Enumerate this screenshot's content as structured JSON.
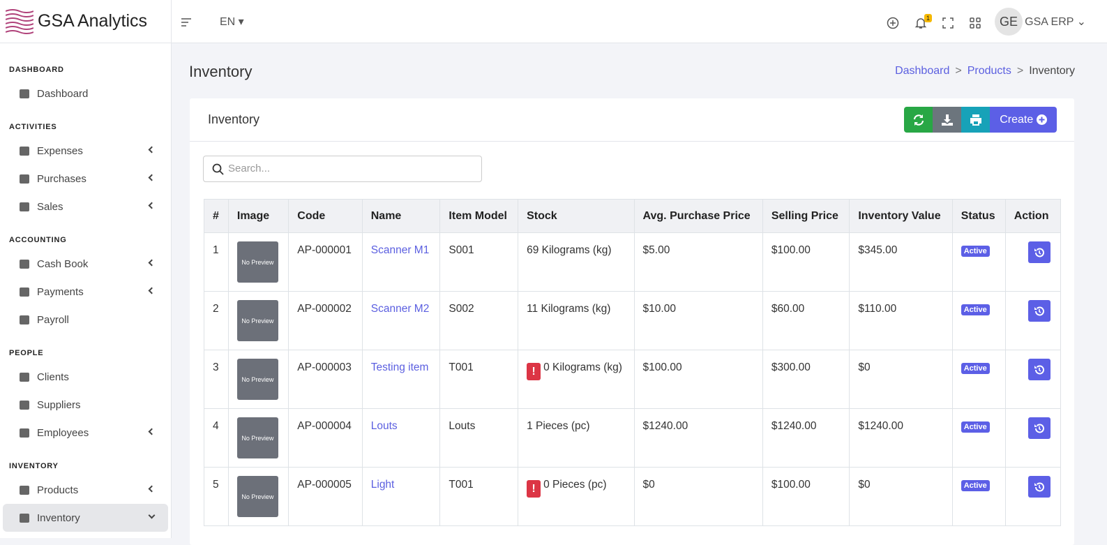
{
  "brand": "GSA Analytics",
  "topbar": {
    "language": "EN",
    "notification_count": "1",
    "avatar": "GE",
    "user": "GSA ERP"
  },
  "sidebar": [
    {
      "heading": "DASHBOARD",
      "items": [
        {
          "label": "Dashboard"
        }
      ]
    },
    {
      "heading": "ACTIVITIES",
      "items": [
        {
          "label": "Expenses",
          "submenu": true
        },
        {
          "label": "Purchases",
          "submenu": true
        },
        {
          "label": "Sales",
          "submenu": true
        }
      ]
    },
    {
      "heading": "ACCOUNTING",
      "items": [
        {
          "label": "Cash Book",
          "submenu": true
        },
        {
          "label": "Payments",
          "submenu": true
        },
        {
          "label": "Payroll"
        }
      ]
    },
    {
      "heading": "PEOPLE",
      "items": [
        {
          "label": "Clients"
        },
        {
          "label": "Suppliers"
        },
        {
          "label": "Employees",
          "submenu": true
        }
      ]
    },
    {
      "heading": "INVENTORY",
      "items": [
        {
          "label": "Products",
          "submenu": true
        },
        {
          "label": "Inventory",
          "submenu": true,
          "active": true
        }
      ]
    }
  ],
  "page_title": "Inventory",
  "breadcrumb": [
    "Dashboard",
    "Products",
    "Inventory"
  ],
  "card_title": "Inventory",
  "create_button": "Create",
  "search_placeholder": "Search...",
  "table": {
    "headers": [
      "#",
      "Image",
      "Code",
      "Name",
      "Item Model",
      "Stock",
      "Avg. Purchase Price",
      "Selling Price",
      "Inventory Value",
      "Status",
      "Action"
    ],
    "rows": [
      {
        "no": "1",
        "image": "No Preview",
        "code": "AP-000001",
        "name": "Scanner M1",
        "model": "S001",
        "stock": "69 Kilograms (kg)",
        "avg_price": "$5.00",
        "selling_price": "$100.00",
        "value": "$345.00",
        "status": "Active"
      },
      {
        "no": "2",
        "image": "No Preview",
        "code": "AP-000002",
        "name": "Scanner M2",
        "model": "S002",
        "stock": "11 Kilograms (kg)",
        "avg_price": "$10.00",
        "selling_price": "$60.00",
        "value": "$110.00",
        "status": "Active"
      },
      {
        "no": "3",
        "image": "No Preview",
        "code": "AP-000003",
        "name": "Testing item",
        "model": "T001",
        "alert": "!",
        "stock": "0 Kilograms (kg)",
        "avg_price": "$100.00",
        "selling_price": "$300.00",
        "value": "$0",
        "status": "Active"
      },
      {
        "no": "4",
        "image": "No Preview",
        "code": "AP-000004",
        "name": "Louts",
        "model": "Louts",
        "stock": "1 Pieces (pc)",
        "avg_price": "$1240.00",
        "selling_price": "$1240.00",
        "value": "$1240.00",
        "status": "Active"
      },
      {
        "no": "5",
        "image": "No Preview",
        "code": "AP-000005",
        "name": "Light",
        "model": "T001",
        "alert": "!",
        "stock": "0 Pieces (pc)",
        "avg_price": "$0",
        "selling_price": "$100.00",
        "value": "$0",
        "status": "Active"
      }
    ]
  }
}
